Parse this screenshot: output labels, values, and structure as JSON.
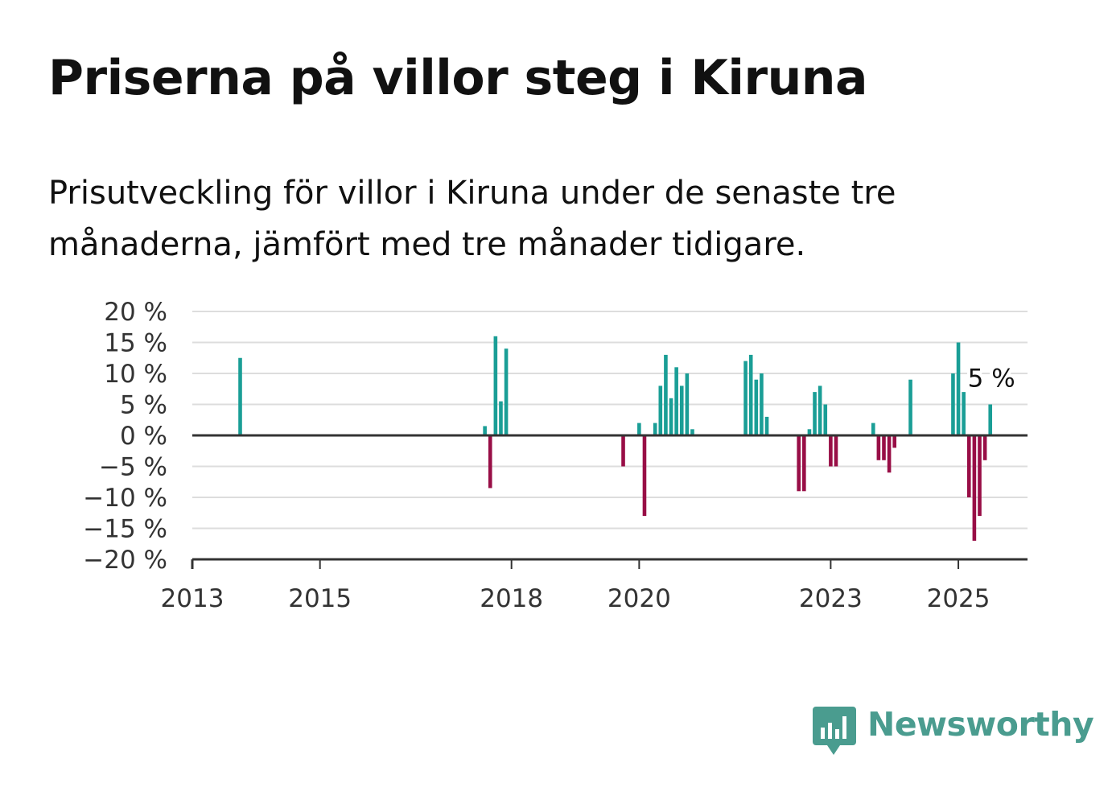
{
  "header": {
    "title": "Priserna på villor steg i Kiruna",
    "subtitle": "Prisutveckling för villor i Kiruna under de senaste tre månaderna, jämfört med tre månader tidigare."
  },
  "brand": {
    "name": "Newsworthy",
    "color": "#4a9c8f"
  },
  "chart_data": {
    "type": "bar",
    "title": "Priserna på villor steg i Kiruna",
    "subtitle": "Prisutveckling för villor i Kiruna under de senaste tre månaderna, jämfört med tre månader tidigare.",
    "xlabel": "",
    "ylabel": "",
    "x_ticks": [
      "2013",
      "2015",
      "2018",
      "2020",
      "2023",
      "2025"
    ],
    "y_ticks": [
      "−20 %",
      "−15 %",
      "−10 %",
      "−5 %",
      "0 %",
      "5 %",
      "10 %",
      "15 %",
      "20 %"
    ],
    "ylim": [
      -20,
      20
    ],
    "xlim": [
      "2013-01",
      "2026-02"
    ],
    "grid": true,
    "positive_color": "#1a9e96",
    "negative_color": "#980e46",
    "last_value_label": "5 %",
    "x": [
      "2013-10",
      "2017-08",
      "2017-09",
      "2017-10",
      "2017-11",
      "2017-12",
      "2019-10",
      "2020-01",
      "2020-02",
      "2020-04",
      "2020-05",
      "2020-06",
      "2020-07",
      "2020-08",
      "2020-09",
      "2020-10",
      "2020-11",
      "2021-09",
      "2021-10",
      "2021-11",
      "2021-12",
      "2022-01",
      "2022-07",
      "2022-08",
      "2022-09",
      "2022-10",
      "2022-11",
      "2022-12",
      "2023-01",
      "2023-02",
      "2023-09",
      "2023-10",
      "2023-11",
      "2023-12",
      "2024-01",
      "2024-04",
      "2024-12",
      "2025-01",
      "2025-02",
      "2025-03",
      "2025-04",
      "2025-05",
      "2025-06",
      "2025-07"
    ],
    "values": [
      12.5,
      1.5,
      -8.5,
      16,
      5.5,
      14,
      -5,
      2,
      -13,
      2,
      8,
      13,
      6,
      11,
      8,
      10,
      1,
      12,
      13,
      9,
      10,
      3,
      -9,
      -9,
      1,
      7,
      8,
      5,
      -5,
      -5,
      2,
      -4,
      -4,
      -6,
      -2,
      9,
      10,
      15,
      7,
      -10,
      -17,
      -13,
      -4,
      5
    ]
  }
}
